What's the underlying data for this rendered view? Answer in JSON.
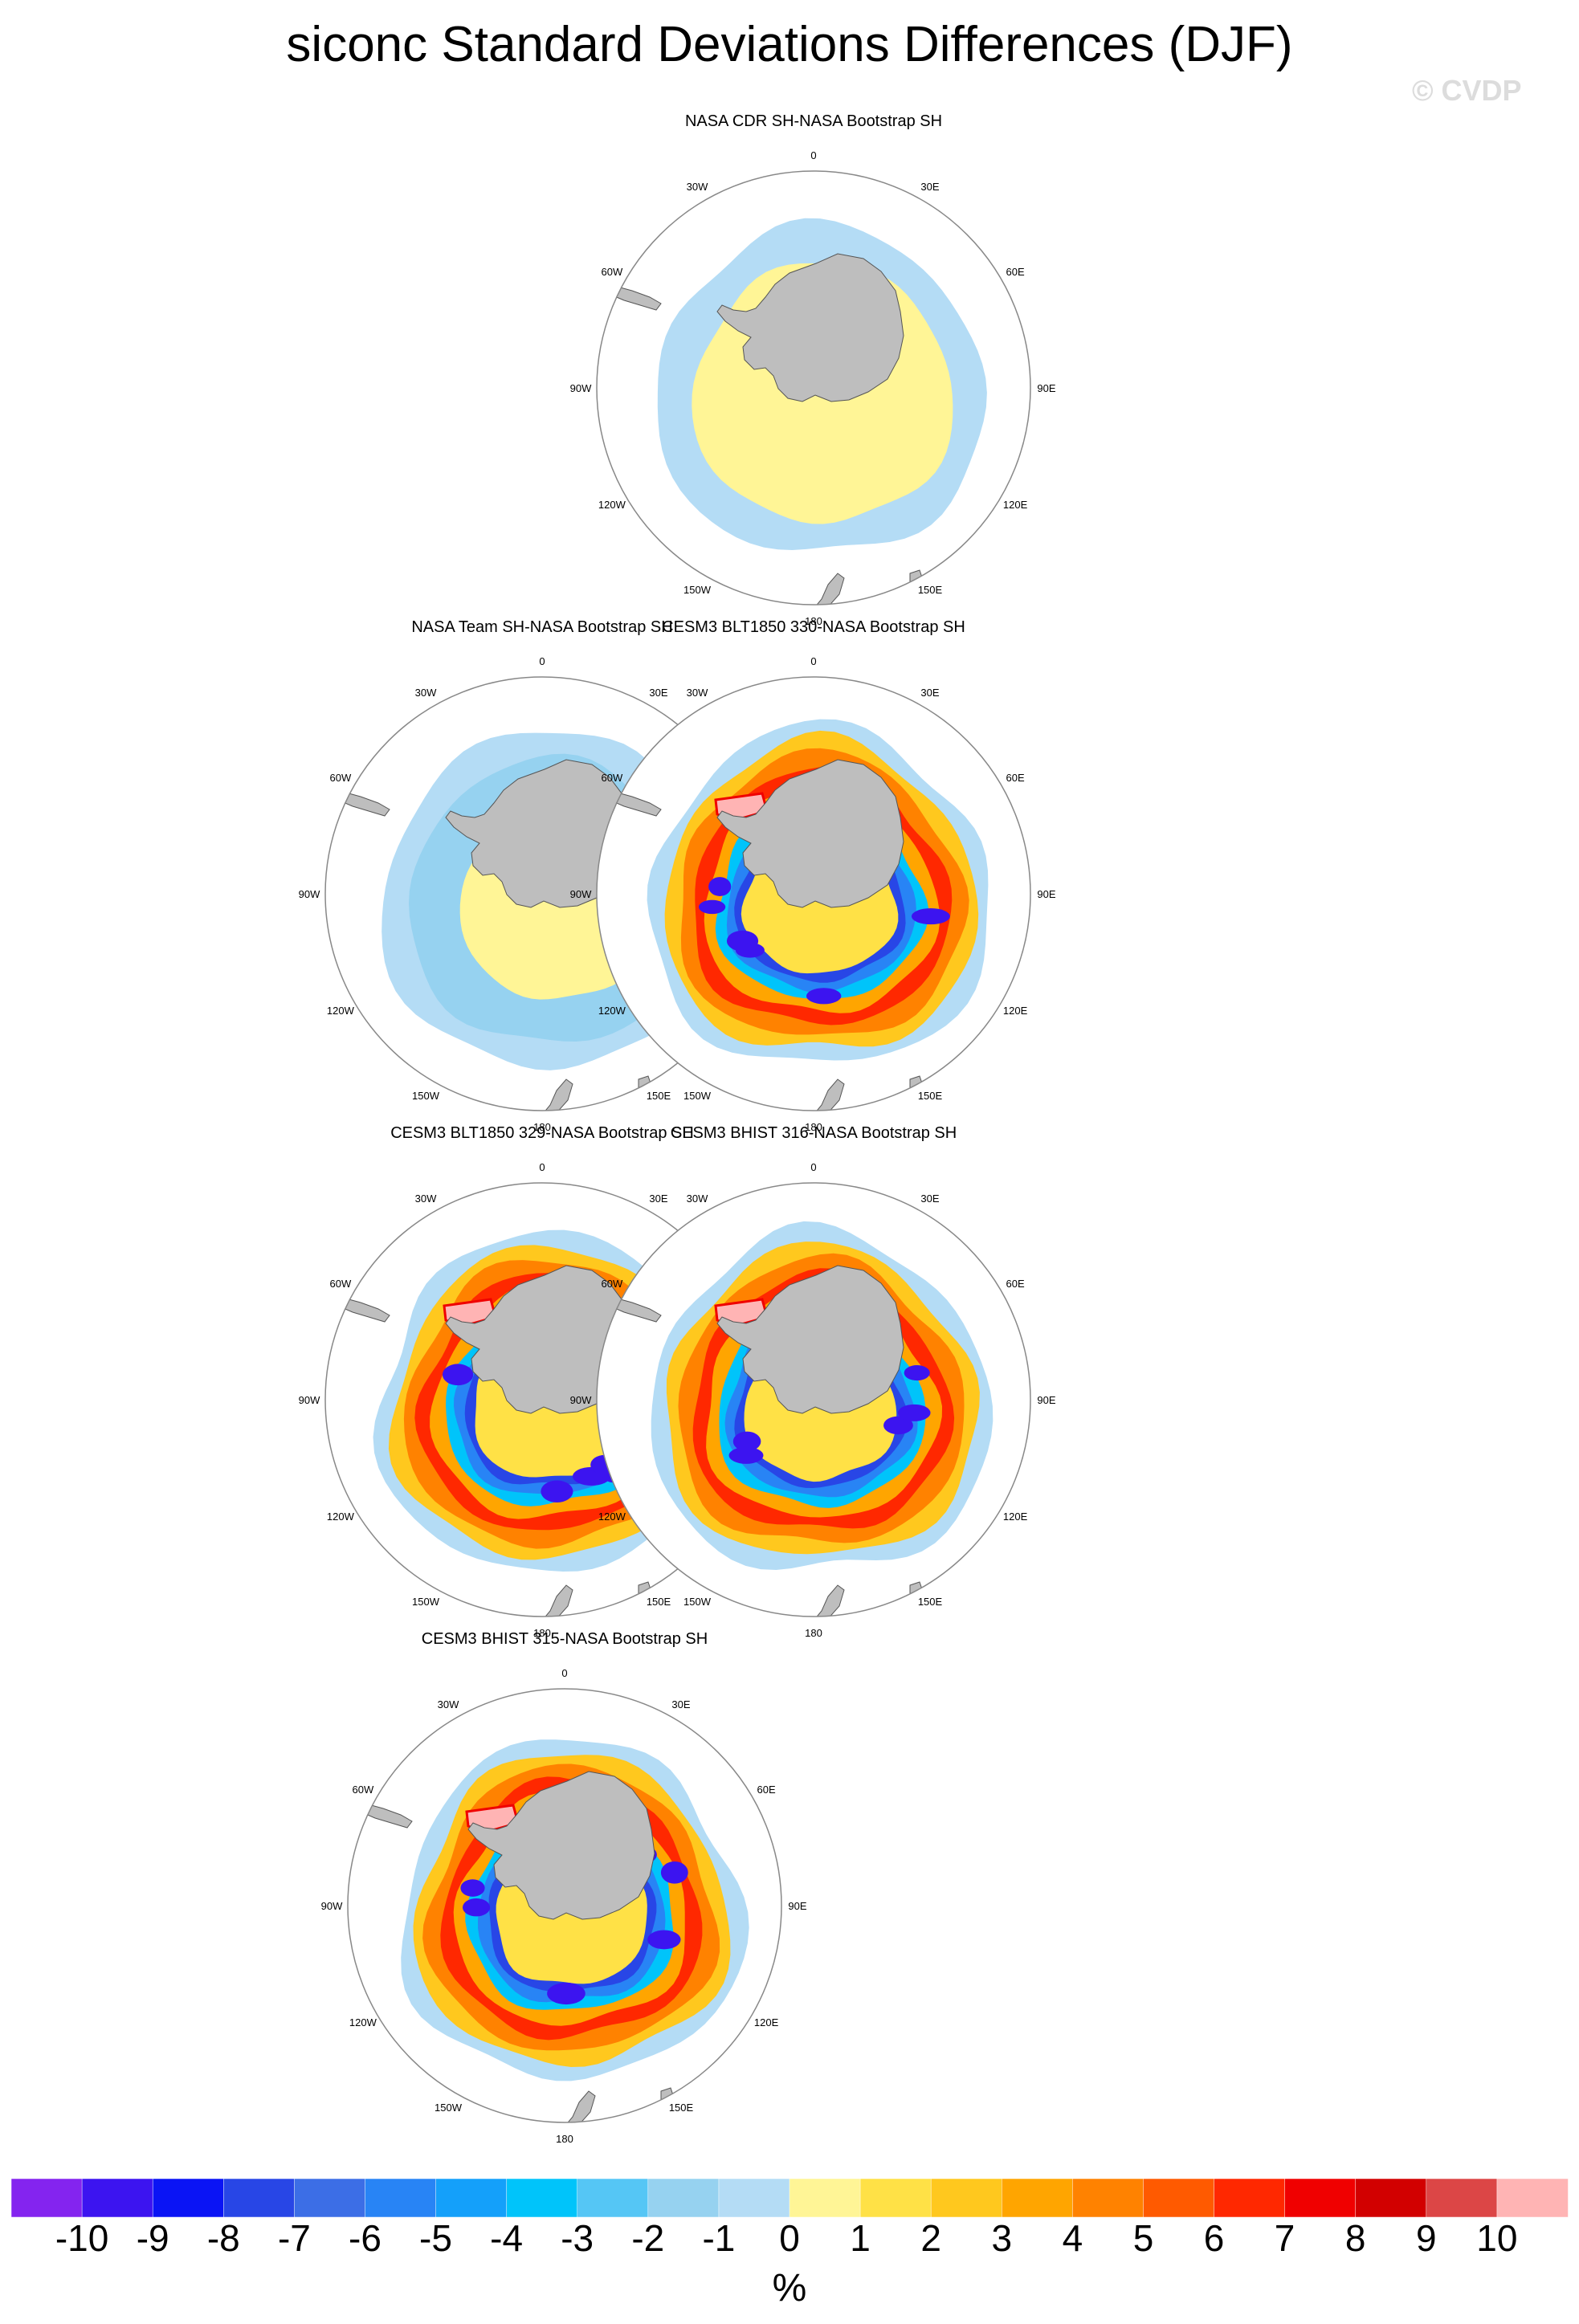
{
  "title": "siconc Standard Deviations Differences (DJF)",
  "watermark": "© CVDP",
  "panels": [
    {
      "name": "panel-nasa-cdr",
      "title": "NASA CDR SH-NASA Bootstrap SH",
      "style": "cdr"
    },
    {
      "name": "panel-nasa-team",
      "title": "NASA Team SH-NASA Bootstrap SH",
      "style": "team"
    },
    {
      "name": "panel-blt1850-330",
      "title": "CESM3 BLT1850 330-NASA Bootstrap SH",
      "style": "model"
    },
    {
      "name": "panel-blt1850-329",
      "title": "CESM3 BLT1850 329-NASA Bootstrap SH",
      "style": "model"
    },
    {
      "name": "panel-bhist-316",
      "title": "CESM3 BHIST 316-NASA Bootstrap SH",
      "style": "model"
    },
    {
      "name": "panel-bhist-315",
      "title": "CESM3 BHIST 315-NASA Bootstrap SH",
      "style": "model"
    }
  ],
  "map_labels": [
    "0",
    "30E",
    "60E",
    "90E",
    "120E",
    "150E",
    "180",
    "150W",
    "120W",
    "90W",
    "60W",
    "30W"
  ],
  "colorbar": {
    "colors": [
      "#8424ef",
      "#3c14f0",
      "#0a14f5",
      "#2846e6",
      "#3c6ee6",
      "#2884f5",
      "#14a0fa",
      "#00c4fa",
      "#55c6f5",
      "#96d2f0",
      "#b4dcf5",
      "#fff596",
      "#ffe146",
      "#ffc81e",
      "#ffa500",
      "#ff8200",
      "#ff5a00",
      "#ff2800",
      "#f00000",
      "#d20000",
      "#dc4646",
      "#ffb4b4"
    ],
    "ticks": [
      "-10",
      "-9",
      "-8",
      "-7",
      "-6",
      "-5",
      "-4",
      "-3",
      "-2",
      "-1",
      "0",
      "1",
      "2",
      "3",
      "4",
      "5",
      "6",
      "7",
      "8",
      "9",
      "10"
    ],
    "units": "%"
  },
  "colors": {
    "land": "#bebebe",
    "coast": "#555555",
    "background": "#ffffff"
  }
}
